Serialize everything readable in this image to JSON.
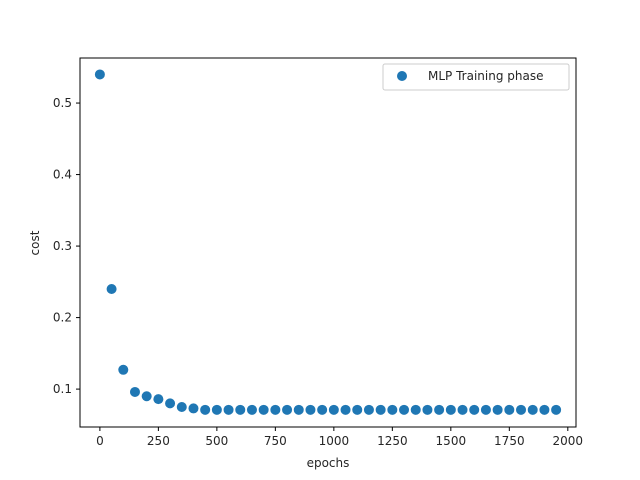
{
  "chart_data": {
    "type": "scatter",
    "title": "",
    "xlabel": "epochs",
    "ylabel": "cost",
    "xlim": [
      -85,
      2035
    ],
    "ylim": [
      0.047,
      0.563
    ],
    "xticks": [
      0,
      250,
      500,
      750,
      1000,
      1250,
      1500,
      1750,
      2000
    ],
    "yticks": [
      0.1,
      0.2,
      0.3,
      0.4,
      0.5
    ],
    "grid": false,
    "legend_position": "upper right",
    "series": [
      {
        "name": "MLP Training phase",
        "color": "#1f77b4",
        "marker": "circle",
        "x": [
          0,
          50,
          100,
          150,
          200,
          250,
          300,
          350,
          400,
          450,
          500,
          550,
          600,
          650,
          700,
          750,
          800,
          850,
          900,
          950,
          1000,
          1050,
          1100,
          1150,
          1200,
          1250,
          1300,
          1350,
          1400,
          1450,
          1500,
          1550,
          1600,
          1650,
          1700,
          1750,
          1800,
          1850,
          1900,
          1950
        ],
        "y": [
          0.54,
          0.24,
          0.127,
          0.096,
          0.09,
          0.086,
          0.08,
          0.075,
          0.073,
          0.071,
          0.071,
          0.071,
          0.071,
          0.071,
          0.071,
          0.071,
          0.071,
          0.071,
          0.071,
          0.071,
          0.071,
          0.071,
          0.071,
          0.071,
          0.071,
          0.071,
          0.071,
          0.071,
          0.071,
          0.071,
          0.071,
          0.071,
          0.071,
          0.071,
          0.071,
          0.071,
          0.071,
          0.071,
          0.071,
          0.071
        ]
      }
    ]
  }
}
